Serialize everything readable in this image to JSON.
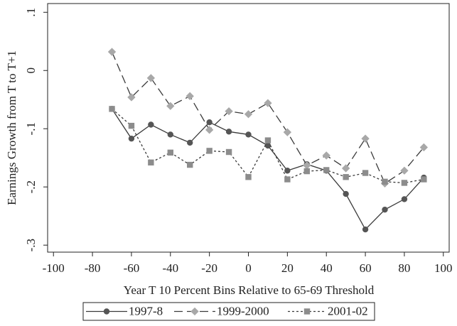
{
  "chart_data": {
    "type": "line",
    "y_label": "Earnings Growth from T to T+1",
    "x_label": "Year T 10 Percent Bins Relative to 65-69 Threshold",
    "x": [
      -70,
      -60,
      -50,
      -40,
      -30,
      -20,
      -10,
      0,
      10,
      20,
      30,
      40,
      50,
      60,
      70,
      80,
      90
    ],
    "series": [
      {
        "name": "1997-8",
        "color": "#3a3a3a",
        "marker_color": "#555555",
        "marker": "circle",
        "line_style": "solid",
        "values": [
          -0.066,
          -0.117,
          -0.093,
          -0.11,
          -0.124,
          -0.089,
          -0.105,
          -0.11,
          -0.129,
          -0.172,
          -0.161,
          -0.172,
          -0.212,
          -0.273,
          -0.239,
          -0.221,
          -0.184
        ]
      },
      {
        "name": "1999-2000",
        "color": "#3a3a3a",
        "marker_color": "#a8a8a8",
        "marker": "diamond",
        "line_style": "dash",
        "values": [
          0.032,
          -0.046,
          -0.013,
          -0.061,
          -0.044,
          -0.102,
          -0.07,
          -0.075,
          -0.056,
          -0.106,
          -0.163,
          -0.146,
          -0.168,
          -0.117,
          -0.194,
          -0.172,
          -0.132
        ]
      },
      {
        "name": "2001-02",
        "color": "#3a3a3a",
        "marker_color": "#8c8c8c",
        "marker": "square",
        "line_style": "dot",
        "values": [
          -0.066,
          -0.095,
          -0.158,
          -0.141,
          -0.162,
          -0.138,
          -0.14,
          -0.183,
          -0.12,
          -0.187,
          -0.173,
          -0.171,
          -0.183,
          -0.176,
          -0.191,
          -0.193,
          -0.187
        ]
      }
    ],
    "xlim": [
      -103,
      103
    ],
    "ylim": [
      -0.312,
      0.115
    ],
    "xticks": [
      -100,
      -80,
      -60,
      -40,
      -20,
      0,
      20,
      40,
      60,
      80,
      100
    ],
    "yticks": [
      {
        "value": 0.1,
        "label": ".1"
      },
      0,
      {
        "value": -0.1,
        "label": "-.1"
      },
      {
        "value": -0.2,
        "label": "-.2"
      },
      {
        "value": -0.3,
        "label": "-.3"
      }
    ],
    "grid": false,
    "legend": "bottom"
  }
}
